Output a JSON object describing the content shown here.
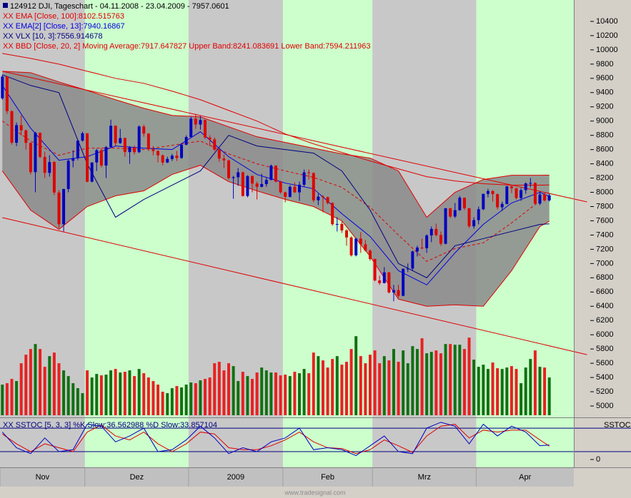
{
  "chart_data": {
    "type": "candlestick",
    "title": "124912  DJI, Tageschart - 04.11.2008 - 23.04.2009 - 7957.0601",
    "legend": [
      {
        "text": "XX EMA [Close, 100]:8102.515763",
        "color": "#e00000"
      },
      {
        "text": "XX EMA[2] [Close, 13]:7940.16867",
        "color": "#0000e0"
      },
      {
        "text": "XX VLX [10, 3]:7556.914678",
        "color": "#000080"
      },
      {
        "text": "XX BBD [Close, 20, 2] Moving Average:7917.647827 Upper Band:8241.083691 Lower Band:7594.211963",
        "color": "#e00000"
      }
    ],
    "months": [
      "Nov",
      "Dez",
      "2009",
      "Feb",
      "Mrz",
      "Apr"
    ],
    "month_days": [
      18,
      22,
      20,
      19,
      22,
      16
    ],
    "shade_colors": [
      "#c8c8c8",
      "#ccffcc"
    ],
    "xlim": [
      -0.5,
      121.2
    ],
    "ylim": [
      4870,
      10680
    ],
    "yticks": [
      5000,
      5200,
      5400,
      5600,
      5800,
      6000,
      6200,
      6400,
      6600,
      6800,
      7000,
      7200,
      7400,
      7600,
      7800,
      8000,
      8200,
      8400,
      8600,
      8800,
      9000,
      9200,
      9400,
      9600,
      9800,
      10000,
      10200,
      10400
    ],
    "up_color": "#0000c0",
    "down_color": "#e00000",
    "open": [
      9320,
      9625,
      9139,
      8696,
      8943,
      8870,
      8694,
      8283,
      8835,
      8497,
      8273,
      8425,
      7997,
      7552,
      8046,
      8443,
      8479,
      8726,
      8829,
      8149,
      8419,
      8591,
      8376,
      8635,
      8934,
      8691,
      8761,
      8565,
      8629,
      8564,
      8924,
      8824,
      8604,
      8579,
      8519,
      8419,
      8468,
      8515,
      8483,
      8668,
      8776,
      9034,
      8952,
      9015,
      8769,
      8742,
      8599,
      8474,
      8448,
      8200,
      8212,
      8281,
      7949,
      8228,
      8123,
      8077,
      8116,
      8174,
      8375,
      8149,
      8000,
      7936,
      8078,
      8000,
      8106,
      8280,
      8270,
      7888,
      7939,
      7932,
      7850,
      7552,
      7555,
      7465,
      7366,
      7115,
      7350,
      7270,
      7182,
      7063,
      6763,
      6726,
      6876,
      6594,
      6627,
      6547,
      6926,
      6930,
      7170,
      7224,
      7216,
      7395,
      7486,
      7400,
      7278,
      7776,
      7660,
      7749,
      7924,
      7776,
      7523,
      7609,
      7762,
      7978,
      8018,
      7975,
      7790,
      7837,
      8083,
      8058,
      7920,
      8030,
      8125,
      8131,
      7842,
      7969,
      7887
    ],
    "high": [
      9650,
      9630,
      9150,
      8980,
      9080,
      8880,
      8700,
      8850,
      8840,
      8570,
      8520,
      8440,
      8030,
      8050,
      8460,
      8590,
      8740,
      8850,
      8830,
      8420,
      8610,
      8620,
      8650,
      9020,
      8940,
      8890,
      8770,
      8650,
      8660,
      8940,
      8950,
      8830,
      8650,
      8590,
      8530,
      8500,
      8540,
      8580,
      8690,
      8800,
      9060,
      9100,
      9070,
      9020,
      8800,
      8770,
      8610,
      8530,
      8460,
      8230,
      8340,
      8290,
      8240,
      8240,
      8150,
      8260,
      8210,
      8390,
      8380,
      8160,
      8010,
      8100,
      8140,
      8150,
      8320,
      8320,
      8280,
      7980,
      7960,
      7940,
      7860,
      7650,
      7590,
      7480,
      7380,
      7360,
      7440,
      7330,
      7200,
      7070,
      6830,
      6950,
      6880,
      6700,
      6700,
      6930,
      7000,
      7180,
      7250,
      7350,
      7410,
      7520,
      7560,
      7450,
      7780,
      7780,
      7850,
      7950,
      7930,
      7780,
      7650,
      7800,
      7980,
      8050,
      8030,
      7980,
      7870,
      8090,
      8100,
      8060,
      8060,
      8140,
      8200,
      8140,
      8010,
      8000,
      7980
    ],
    "low": [
      9300,
      9100,
      8670,
      8650,
      8800,
      8600,
      8250,
      8000,
      8480,
      8200,
      8220,
      7960,
      7500,
      7450,
      8000,
      8350,
      8450,
      8710,
      8140,
      8140,
      8300,
      8350,
      8200,
      8630,
      8650,
      8680,
      8500,
      8400,
      8530,
      8550,
      8780,
      8580,
      8520,
      8420,
      8380,
      8410,
      8440,
      8440,
      8470,
      8660,
      8770,
      8890,
      8880,
      8750,
      8650,
      8580,
      8430,
      8340,
      8180,
      7910,
      8090,
      7940,
      7930,
      8000,
      7900,
      8070,
      8080,
      8170,
      8140,
      7980,
      7860,
      7930,
      7990,
      7880,
      8080,
      8180,
      7860,
      7820,
      7720,
      7830,
      7530,
      7450,
      7430,
      7250,
      7100,
      7100,
      7150,
      7170,
      7040,
      6750,
      6700,
      6720,
      6580,
      6470,
      6520,
      6540,
      6880,
      6900,
      7100,
      7200,
      7150,
      7300,
      7380,
      7250,
      7270,
      7640,
      7640,
      7740,
      7750,
      7500,
      7490,
      7550,
      7750,
      7930,
      7870,
      7760,
      7740,
      7830,
      7990,
      7900,
      7880,
      7980,
      8070,
      7830,
      7820,
      7870,
      7870
    ],
    "close": [
      9625,
      9139,
      8696,
      8943,
      8870,
      8694,
      8283,
      8835,
      8497,
      8273,
      8425,
      7997,
      7552,
      8046,
      8443,
      8479,
      8726,
      8829,
      8149,
      8419,
      8591,
      8376,
      8635,
      8934,
      8691,
      8761,
      8565,
      8629,
      8564,
      8924,
      8824,
      8604,
      8579,
      8519,
      8419,
      8468,
      8515,
      8483,
      8668,
      8776,
      9034,
      8952,
      9015,
      8769,
      8742,
      8599,
      8474,
      8448,
      8200,
      8212,
      8281,
      7949,
      8228,
      8123,
      8077,
      8116,
      8174,
      8375,
      8149,
      8000,
      7936,
      8078,
      8000,
      8106,
      8280,
      8270,
      7888,
      7939,
      7932,
      7850,
      7552,
      7555,
      7465,
      7366,
      7115,
      7350,
      7270,
      7182,
      7063,
      6763,
      6726,
      6876,
      6594,
      6627,
      6547,
      6926,
      6930,
      7170,
      7224,
      7216,
      7395,
      7486,
      7400,
      7278,
      7776,
      7660,
      7749,
      7924,
      7776,
      7523,
      7609,
      7762,
      7978,
      8018,
      7975,
      7790,
      7837,
      8083,
      8058,
      7920,
      8030,
      8125,
      8131,
      7842,
      7969,
      7887,
      7957
    ],
    "volume": {
      "up_color": "#107010",
      "down_color": "#e82020",
      "values": [
        5300,
        5320,
        5380,
        5350,
        5600,
        5720,
        5800,
        5870,
        5800,
        5550,
        5700,
        5750,
        5600,
        5500,
        5420,
        5320,
        5250,
        5180,
        5500,
        5400,
        5450,
        5430,
        5440,
        5500,
        5520,
        5470,
        5480,
        5500,
        5420,
        5520,
        5460,
        5400,
        5350,
        5300,
        5200,
        5180,
        5250,
        5280,
        5260,
        5300,
        5330,
        5320,
        5360,
        5380,
        5400,
        5600,
        5620,
        5500,
        5600,
        5560,
        5350,
        5480,
        5420,
        5380,
        5470,
        5540,
        5500,
        5470,
        5470,
        5430,
        5440,
        5420,
        5480,
        5460,
        5520,
        5460,
        5750,
        5700,
        5640,
        5540,
        5660,
        5700,
        5580,
        5620,
        5800,
        5980,
        5700,
        5600,
        5720,
        5780,
        5600,
        5700,
        5640,
        5800,
        5620,
        5780,
        5600,
        5840,
        5800,
        5950,
        5740,
        5760,
        5780,
        5740,
        5870,
        5870,
        5860,
        5860,
        5800,
        5960,
        5650,
        5550,
        5580,
        5520,
        5610,
        5530,
        5520,
        5540,
        5560,
        5520,
        5320,
        5540,
        5660,
        5780,
        5550,
        5540,
        5400
      ]
    },
    "sample_x": [
      0,
      6,
      12,
      18,
      24,
      30,
      36,
      42,
      48,
      54,
      60,
      66,
      72,
      78,
      84,
      90,
      96,
      102,
      108,
      114,
      116
    ],
    "band": {
      "fill": "#8a8a8a",
      "color": "#e00000",
      "upper": [
        9700,
        9680,
        9550,
        9430,
        9300,
        9180,
        9080,
        9060,
        8920,
        8780,
        8700,
        8620,
        8540,
        8480,
        8300,
        7650,
        8000,
        8180,
        8240,
        8240,
        8241
      ],
      "middle": [
        9000,
        8720,
        8520,
        8620,
        8620,
        8600,
        8660,
        8720,
        8540,
        8400,
        8300,
        8210,
        8070,
        7790,
        7400,
        7030,
        7210,
        7290,
        7570,
        7880,
        7918
      ],
      "lower": [
        8300,
        7750,
        7480,
        7800,
        7950,
        8020,
        8250,
        8380,
        8150,
        8020,
        7900,
        7800,
        7600,
        7100,
        6500,
        6400,
        6420,
        6400,
        6900,
        7520,
        7594
      ]
    },
    "lines": [
      {
        "color": "#e00000",
        "values": [
          9950,
          9880,
          9800,
          9700,
          9600,
          9530,
          9420,
          9300,
          9150,
          9000,
          8820,
          8680,
          8560,
          8440,
          8330,
          8220,
          8160,
          8120,
          8100,
          8100,
          8103
        ]
      },
      {
        "color": "#0000e0",
        "values": [
          9500,
          8900,
          8450,
          8500,
          8650,
          8620,
          8600,
          8850,
          8500,
          8250,
          8130,
          8050,
          7700,
          7380,
          6900,
          6700,
          7150,
          7550,
          7850,
          8000,
          7940
        ]
      },
      {
        "color": "#000080",
        "values": [
          9650,
          9500,
          9400,
          8400,
          7650,
          7900,
          8100,
          8300,
          8800,
          8650,
          8600,
          8550,
          8300,
          7750,
          7000,
          6800,
          7250,
          7350,
          7450,
          7550,
          7557
        ]
      }
    ],
    "trendlines": [
      {
        "color": "#e00000",
        "x": [
          0,
          124
        ],
        "y": [
          9700,
          7865
        ]
      },
      {
        "color": "#e00000",
        "x": [
          0,
          124
        ],
        "y": [
          7645,
          5720
        ]
      }
    ],
    "stochastic": {
      "legend": "XX SSTOC [5, 3, 3] %K Slow:36.562988 %D Slow:33.857104",
      "axis_label": "SSTOC",
      "ylim": [
        -20,
        102
      ],
      "yticks": [
        0
      ],
      "levels": [
        20,
        80
      ],
      "level_color": "#000080",
      "x": [
        0,
        3,
        6,
        9,
        12,
        15,
        18,
        21,
        24,
        27,
        30,
        33,
        36,
        39,
        42,
        45,
        48,
        51,
        54,
        57,
        60,
        63,
        66,
        69,
        72,
        75,
        78,
        81,
        84,
        87,
        90,
        93,
        96,
        99,
        102,
        105,
        108,
        111,
        114,
        116
      ],
      "k": {
        "color": "#0000c0",
        "values": [
          70,
          30,
          15,
          55,
          20,
          25,
          90,
          85,
          45,
          60,
          80,
          20,
          25,
          50,
          85,
          55,
          15,
          30,
          20,
          45,
          55,
          80,
          25,
          30,
          25,
          10,
          35,
          60,
          20,
          15,
          80,
          95,
          85,
          40,
          90,
          60,
          85,
          70,
          35,
          37
        ]
      },
      "d": {
        "color": "#e00000",
        "values": [
          65,
          40,
          20,
          40,
          30,
          20,
          70,
          88,
          60,
          50,
          70,
          40,
          20,
          40,
          70,
          65,
          30,
          25,
          25,
          35,
          50,
          70,
          45,
          30,
          28,
          15,
          25,
          50,
          35,
          18,
          60,
          85,
          90,
          55,
          75,
          70,
          75,
          75,
          50,
          34
        ]
      }
    },
    "footer": "www.tradesignal.com"
  }
}
